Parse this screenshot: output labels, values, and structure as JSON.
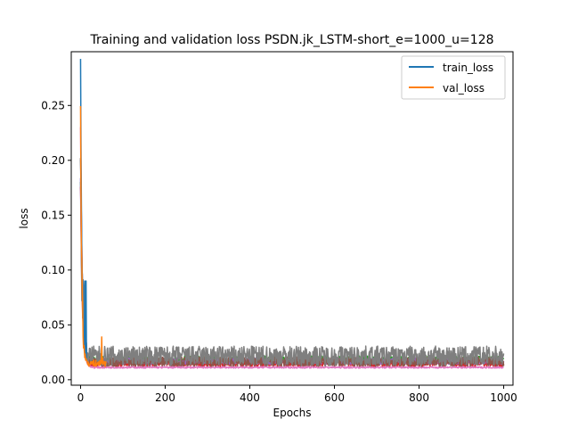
{
  "chart_data": {
    "type": "line",
    "title": "Training and validation loss PSDN.jk_LSTM-short_e=1000_u=128",
    "xlabel": "Epochs",
    "ylabel": "loss",
    "xlim": [
      -22,
      1022
    ],
    "ylim": [
      -0.005,
      0.299
    ],
    "x_ticks": [
      0,
      200,
      400,
      600,
      800,
      1000
    ],
    "x_tick_labels": [
      "0",
      "200",
      "400",
      "600",
      "800",
      "1000"
    ],
    "y_ticks": [
      0.0,
      0.05,
      0.1,
      0.15,
      0.2,
      0.25
    ],
    "y_tick_labels": [
      "0.00",
      "0.05",
      "0.10",
      "0.15",
      "0.20",
      "0.25"
    ],
    "grid": false,
    "legend": {
      "placement": "top-right",
      "entries": [
        {
          "label": "train_loss",
          "color": "#1f77b4"
        },
        {
          "label": "val_loss",
          "color": "#ff7f0e"
        }
      ]
    },
    "series": [
      {
        "name": "train_loss",
        "color": "#1f77b4",
        "start": 0.285,
        "floor": 0.016,
        "amp": 0.004,
        "decay": 3,
        "length": 14,
        "extra": [
          [
            10,
            0.09
          ],
          [
            13,
            0.09
          ]
        ]
      },
      {
        "name": "val_loss",
        "color": "#ff7f0e",
        "start": 0.24,
        "floor": 0.014,
        "amp": 0.006,
        "decay": 3,
        "length": 60,
        "extra": [
          [
            50,
            0.039
          ],
          [
            52,
            0.02
          ]
        ]
      },
      {
        "color": "#2ca02c",
        "start": 0.19,
        "floor": 0.017,
        "amp": 0.007,
        "decay": 4,
        "length": 1000
      },
      {
        "color": "#d62728",
        "start": 0.18,
        "floor": 0.014,
        "amp": 0.006,
        "decay": 4,
        "length": 1000
      },
      {
        "color": "#9467bd",
        "start": 0.17,
        "floor": 0.016,
        "amp": 0.006,
        "decay": 4,
        "length": 1000
      },
      {
        "color": "#8c564b",
        "start": 0.2,
        "floor": 0.015,
        "amp": 0.009,
        "decay": 4,
        "length": 1000
      },
      {
        "color": "#e377c2",
        "start": 0.23,
        "floor": 0.011,
        "amp": 0.0015,
        "decay": 4,
        "length": 1000
      },
      {
        "color": "#7f7f7f",
        "start": 0.18,
        "floor": 0.019,
        "amp": 0.018,
        "decay": 4,
        "length": 1000
      }
    ]
  }
}
